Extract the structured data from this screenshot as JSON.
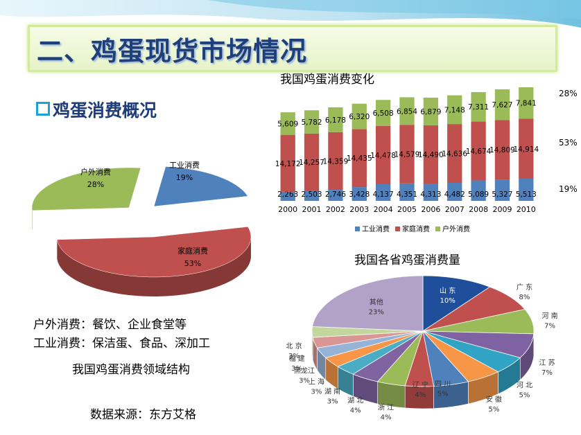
{
  "title": "二、鸡蛋现货市场情况",
  "section_heading": "鸡蛋消费概况",
  "notes": [
    "户外消费：餐饮、企业食堂等",
    "工业消费：保洁蛋、食品、深加工"
  ],
  "pie1_caption": "我国鸡蛋消费领域结构",
  "source": "数据来源：东方艾格",
  "bar_title": "我国鸡蛋消费变化",
  "pie2_title": "我国各省鸡蛋消费量",
  "right_labels": [
    "28%",
    "53%",
    "19%"
  ],
  "colors": {
    "industrial": "#4f81bd",
    "household": "#c0504d",
    "outdoor": "#9bbb59",
    "title_text": "#1f3f7a"
  },
  "chart_data": [
    {
      "type": "pie",
      "title": "",
      "labels": [
        "工业消费",
        "家庭消费",
        "户外消费"
      ],
      "values": [
        19,
        53,
        28
      ],
      "value_labels": [
        "19%",
        "53%",
        "28%"
      ],
      "colors": [
        "#4f81bd",
        "#c0504d",
        "#9bbb59"
      ]
    },
    {
      "type": "bar",
      "stacked": true,
      "title": "我国鸡蛋消费变化",
      "categories": [
        "2000",
        "2001",
        "2002",
        "2003",
        "2004",
        "2005",
        "2006",
        "2007",
        "2008",
        "2009",
        "2010"
      ],
      "series": [
        {
          "name": "工业消费",
          "color": "#4f81bd",
          "values": [
            2263,
            2503,
            2746,
            3428,
            4137,
            4351,
            4313,
            4482,
            5089,
            5327,
            5513
          ],
          "labels": [
            "2,263",
            "2,503",
            "2,746",
            "3,428",
            "4,137",
            "4,351",
            "4,313",
            "4,482",
            "5,089",
            "5,327",
            "5,513"
          ]
        },
        {
          "name": "家庭消费",
          "color": "#c0504d",
          "values": [
            14172,
            14257,
            14359,
            14435,
            14478,
            14579,
            14490,
            14636,
            14674,
            14809,
            14914
          ],
          "labels": [
            "14,172",
            "14,257",
            "14,359",
            "14,435",
            "14,478",
            "14,579",
            "14,490",
            "14,636",
            "14,674",
            "14,809",
            "14,914"
          ]
        },
        {
          "name": "户外消费",
          "color": "#9bbb59",
          "values": [
            5609,
            5782,
            6178,
            6320,
            6508,
            6854,
            6879,
            7148,
            7311,
            7627,
            7841
          ],
          "labels": [
            "5,609",
            "5,782",
            "6,178",
            "6,320",
            "6,508",
            "6,854",
            "6,879",
            "7,148",
            "7,311",
            "7,627",
            "7,841"
          ]
        }
      ],
      "legend": "bottom"
    },
    {
      "type": "pie",
      "title": "我国各省鸡蛋消费量",
      "labels": [
        "山 东",
        "广 东",
        "河 南",
        "江 苏",
        "河 北",
        "安 徽",
        "四 川",
        "辽 宁",
        "浙 江",
        "湖 北",
        "湖 南",
        "上 海",
        "黑龙江",
        "福 建",
        "北 京",
        "其他"
      ],
      "values": [
        10,
        8,
        7,
        7,
        5,
        5,
        5,
        4,
        4,
        4,
        3,
        3,
        3,
        3,
        3,
        23
      ],
      "value_labels": [
        "10%",
        "8%",
        "7%",
        "7%",
        "5%",
        "5%",
        "5%",
        "4%",
        "4%",
        "4%",
        "3%",
        "3%",
        "3%",
        "3%",
        "3%",
        "23%"
      ],
      "colors": [
        "#1f4e9a",
        "#c0504d",
        "#9bbb59",
        "#7e62a1",
        "#31a3c4",
        "#f79646",
        "#4f81bd",
        "#c0504d",
        "#9bbb59",
        "#8064a2",
        "#4bacc6",
        "#f79646",
        "#95b3d7",
        "#d99694",
        "#c3d69b",
        "#b3a2c7"
      ]
    }
  ]
}
